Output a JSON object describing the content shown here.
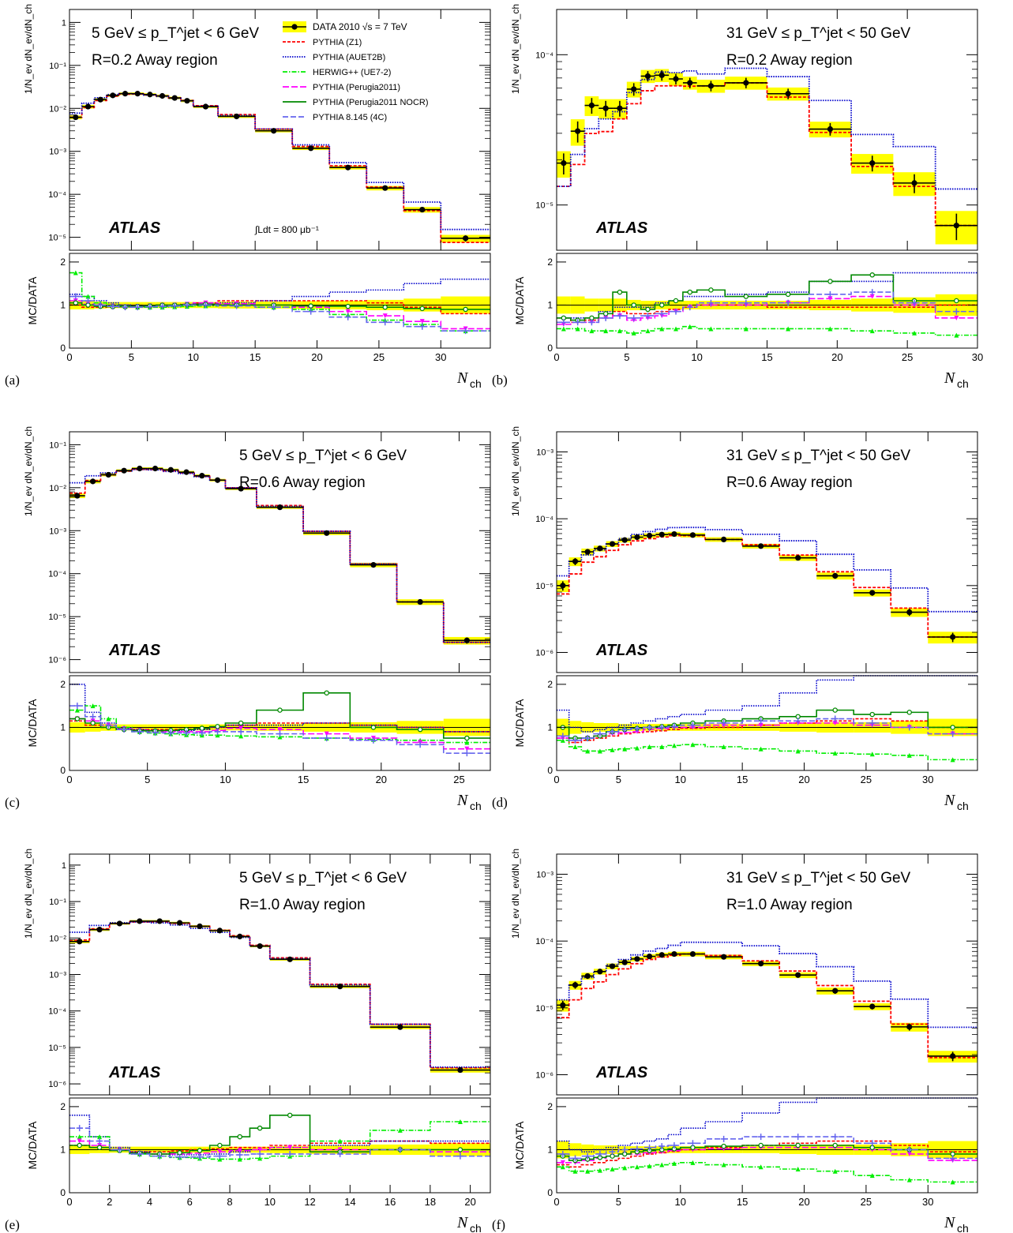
{
  "colors": {
    "data": "#000000",
    "band": "#ffff00",
    "z1": "#ff0000",
    "auet2b": "#0000cc",
    "herwig": "#00ee00",
    "perugia": "#ff00ff",
    "nocr": "#008800",
    "p8": "#6666ee"
  },
  "common": {
    "atlas": "ATLAS",
    "ratio_ylabel": "MC/DATA",
    "xlabel_main": "N",
    "xlabel_sub": "ch",
    "ylabel_frac": "1/N_ev dN_ev/dN_ch"
  },
  "legend": {
    "data_label": "DATA 2010",
    "energy_label": "√s = 7 TeV",
    "entries": [
      "PYTHIA (Z1)",
      "PYTHIA (AUET2B)",
      "HERWIG++ (UE7-2)",
      "PYTHIA (Perugia2011)",
      "PYTHIA (Perugia2011 NOCR)",
      "PYTHIA 8.145 (4C)"
    ],
    "lumi": "∫Ldt = 800 μb⁻¹"
  },
  "chart_data": [
    {
      "id": "a",
      "panel_label": "(a)",
      "type": "line",
      "pt_range": "5 GeV ≤ p_T^jet < 6 GeV",
      "region": "R=0.2   Away region",
      "xlim": [
        0,
        34
      ],
      "ylog": true,
      "ylim": [
        5e-06,
        2
      ],
      "ratio_ylim": [
        0,
        2.2
      ],
      "xticks": [
        0,
        5,
        10,
        15,
        20,
        25,
        30
      ],
      "yticks": [
        1e-05,
        0.0001,
        0.001,
        0.01,
        0.1,
        1
      ],
      "ytick_labels": [
        "10⁻⁵",
        "10⁻⁴",
        "10⁻³",
        "10⁻²",
        "10⁻¹",
        "1"
      ],
      "bins": [
        0,
        1,
        2,
        3,
        4,
        5,
        6,
        7,
        8,
        9,
        10,
        12,
        15,
        18,
        21,
        24,
        27,
        30,
        34
      ],
      "data": [
        0.0062,
        0.011,
        0.016,
        0.02,
        0.022,
        0.022,
        0.021,
        0.0195,
        0.0175,
        0.015,
        0.011,
        0.0065,
        0.003,
        0.00118,
        0.00042,
        0.00014,
        4.4e-05,
        9.5e-06
      ],
      "ratios": {
        "z1": [
          1.0,
          0.95,
          0.95,
          0.96,
          0.97,
          0.98,
          0.98,
          1.0,
          1.0,
          1.02,
          1.05,
          1.1,
          1.1,
          1.1,
          1.1,
          1.05,
          0.95,
          0.8
        ],
        "auet2b": [
          1.25,
          1.2,
          1.1,
          1.05,
          1.0,
          0.98,
          0.97,
          0.97,
          0.98,
          1.0,
          1.02,
          1.05,
          1.1,
          1.2,
          1.3,
          1.35,
          1.5,
          1.6
        ],
        "herwig": [
          1.75,
          1.2,
          1.05,
          1.0,
          0.97,
          0.95,
          0.95,
          0.95,
          0.96,
          0.97,
          0.98,
          1.0,
          0.95,
          0.9,
          0.78,
          0.65,
          0.55,
          0.4
        ],
        "perugia": [
          1.1,
          1.02,
          0.98,
          0.97,
          0.96,
          0.97,
          0.98,
          1.0,
          1.0,
          1.02,
          1.05,
          1.03,
          1.0,
          0.95,
          0.85,
          0.75,
          0.62,
          0.45
        ],
        "nocr": [
          1.05,
          1.0,
          0.97,
          0.96,
          0.96,
          0.97,
          0.98,
          1.0,
          1.0,
          1.01,
          1.02,
          1.0,
          1.0,
          0.98,
          0.97,
          0.95,
          0.92,
          0.9
        ],
        "p8": [
          1.2,
          1.1,
          1.0,
          0.97,
          0.95,
          0.95,
          0.96,
          0.97,
          0.98,
          1.0,
          1.0,
          0.98,
          0.95,
          0.85,
          0.72,
          0.6,
          0.5,
          0.4
        ]
      },
      "band_half": [
        0.1,
        0.1,
        0.08,
        0.07,
        0.07,
        0.07,
        0.07,
        0.07,
        0.07,
        0.07,
        0.07,
        0.08,
        0.08,
        0.09,
        0.1,
        0.12,
        0.15,
        0.2
      ]
    },
    {
      "id": "b",
      "panel_label": "(b)",
      "type": "line",
      "pt_range": "31 GeV ≤ p_T^jet < 50 GeV",
      "region": "R=0.2   Away region",
      "xlim": [
        0,
        30
      ],
      "ylog": true,
      "ylim": [
        5e-06,
        0.0002
      ],
      "ratio_ylim": [
        0,
        2.2
      ],
      "xticks": [
        0,
        5,
        10,
        15,
        20,
        25,
        30
      ],
      "yticks": [
        1e-05,
        0.0001
      ],
      "ytick_labels": [
        "10⁻⁵",
        "10⁻⁴"
      ],
      "bins": [
        0,
        1,
        2,
        3,
        4,
        5,
        6,
        7,
        8,
        9,
        10,
        12,
        15,
        18,
        21,
        24,
        27,
        30
      ],
      "data": [
        1.9e-05,
        3.1e-05,
        4.6e-05,
        4.4e-05,
        4.4e-05,
        5.9e-05,
        7.2e-05,
        7.3e-05,
        6.9e-05,
        6.5e-05,
        6.2e-05,
        6.5e-05,
        5.5e-05,
        3.2e-05,
        1.9e-05,
        1.4e-05,
        7.3e-06
      ],
      "ratios": {
        "z1": [
          0.7,
          0.6,
          0.65,
          0.7,
          0.85,
          0.8,
          0.8,
          0.85,
          0.9,
          0.95,
          1.0,
          1.0,
          0.95,
          0.95,
          0.95,
          0.95,
          1.0
        ],
        "auet2b": [
          0.7,
          0.7,
          0.7,
          0.85,
          0.95,
          0.95,
          0.95,
          1.05,
          1.1,
          1.2,
          1.2,
          1.25,
          1.3,
          1.55,
          1.55,
          1.75,
          1.75
        ],
        "herwig": [
          0.45,
          0.45,
          0.4,
          0.4,
          0.4,
          0.35,
          0.4,
          0.45,
          0.45,
          0.5,
          0.45,
          0.45,
          0.45,
          0.45,
          0.4,
          0.35,
          0.3
        ],
        "perugia": [
          0.55,
          0.6,
          0.6,
          0.7,
          0.75,
          0.65,
          0.7,
          0.75,
          0.85,
          0.95,
          1.0,
          1.0,
          1.05,
          1.15,
          1.2,
          1.0,
          0.7
        ],
        "nocr": [
          0.7,
          0.65,
          0.7,
          0.8,
          1.3,
          1.0,
          0.9,
          1.0,
          1.1,
          1.3,
          1.35,
          1.2,
          1.25,
          1.55,
          1.7,
          1.1,
          1.1
        ],
        "p8": [
          0.6,
          0.6,
          0.6,
          0.7,
          0.75,
          0.7,
          0.75,
          0.8,
          0.85,
          0.95,
          1.05,
          1.05,
          1.05,
          1.25,
          1.3,
          1.05,
          0.85
        ]
      },
      "band_half": [
        0.2,
        0.2,
        0.15,
        0.15,
        0.15,
        0.12,
        0.1,
        0.1,
        0.1,
        0.1,
        0.1,
        0.1,
        0.1,
        0.12,
        0.15,
        0.18,
        0.25
      ]
    },
    {
      "id": "c",
      "panel_label": "(c)",
      "type": "line",
      "pt_range": "5 GeV ≤ p_T^jet < 6 GeV",
      "region": "R=0.6   Away region",
      "xlim": [
        0,
        27
      ],
      "ylog": true,
      "ylim": [
        5e-07,
        0.2
      ],
      "ratio_ylim": [
        0,
        2.2
      ],
      "xticks": [
        0,
        5,
        10,
        15,
        20,
        25
      ],
      "yticks": [
        1e-06,
        1e-05,
        0.0001,
        0.001,
        0.01,
        0.1
      ],
      "ytick_labels": [
        "10⁻⁶",
        "10⁻⁵",
        "10⁻⁴",
        "10⁻³",
        "10⁻²",
        "10⁻¹"
      ],
      "bins": [
        0,
        1,
        2,
        3,
        4,
        5,
        6,
        7,
        8,
        9,
        10,
        12,
        15,
        18,
        21,
        24,
        27
      ],
      "data": [
        0.0065,
        0.014,
        0.02,
        0.025,
        0.028,
        0.028,
        0.026,
        0.023,
        0.019,
        0.015,
        0.0095,
        0.0035,
        0.00088,
        0.00016,
        2.2e-05,
        2.8e-06
      ],
      "ratios": {
        "z1": [
          1.15,
          1.05,
          1.0,
          0.97,
          0.95,
          0.95,
          0.95,
          0.96,
          0.97,
          1.0,
          1.05,
          1.1,
          1.1,
          1.05,
          1.0,
          0.9
        ],
        "auet2b": [
          2.0,
          1.35,
          1.1,
          0.98,
          0.95,
          0.93,
          0.92,
          0.93,
          0.95,
          1.0,
          1.05,
          1.05,
          1.1,
          1.05,
          1.0,
          0.9
        ],
        "herwig": [
          1.4,
          1.5,
          1.2,
          1.0,
          0.9,
          0.87,
          0.85,
          0.83,
          0.82,
          0.82,
          0.8,
          0.78,
          0.75,
          0.72,
          0.7,
          0.65
        ],
        "perugia": [
          1.2,
          1.15,
          1.05,
          0.97,
          0.93,
          0.9,
          0.9,
          0.9,
          0.9,
          0.93,
          0.98,
          0.95,
          0.85,
          0.75,
          0.65,
          0.5
        ],
        "nocr": [
          1.2,
          1.1,
          1.0,
          0.95,
          0.92,
          0.92,
          0.93,
          0.95,
          0.98,
          1.02,
          1.1,
          1.4,
          1.8,
          1.0,
          0.95,
          0.75
        ],
        "p8": [
          1.5,
          1.25,
          1.05,
          0.95,
          0.9,
          0.88,
          0.87,
          0.87,
          0.87,
          0.9,
          0.9,
          0.85,
          0.75,
          0.7,
          0.6,
          0.4
        ]
      },
      "band_half": [
        0.12,
        0.1,
        0.08,
        0.07,
        0.07,
        0.07,
        0.07,
        0.07,
        0.07,
        0.07,
        0.07,
        0.08,
        0.1,
        0.12,
        0.15,
        0.2
      ]
    },
    {
      "id": "d",
      "panel_label": "(d)",
      "type": "line",
      "pt_range": "31 GeV ≤ p_T^jet < 50 GeV",
      "region": "R=0.6   Away region",
      "xlim": [
        0,
        34
      ],
      "ylog": true,
      "ylim": [
        5e-07,
        0.002
      ],
      "ratio_ylim": [
        0,
        2.2
      ],
      "xticks": [
        0,
        5,
        10,
        15,
        20,
        25,
        30
      ],
      "yticks": [
        1e-06,
        1e-05,
        0.0001,
        0.001
      ],
      "ytick_labels": [
        "10⁻⁶",
        "10⁻⁵",
        "10⁻⁴",
        "10⁻³"
      ],
      "bins": [
        0,
        1,
        2,
        3,
        4,
        5,
        6,
        7,
        8,
        9,
        10,
        12,
        15,
        18,
        21,
        24,
        27,
        30,
        34
      ],
      "data": [
        1e-05,
        2.3e-05,
        3.2e-05,
        3.6e-05,
        4.2e-05,
        4.8e-05,
        5.3e-05,
        5.6e-05,
        5.8e-05,
        5.9e-05,
        5.7e-05,
        4.9e-05,
        3.9e-05,
        2.6e-05,
        1.4e-05,
        7.8e-06,
        4e-06,
        1.7e-06
      ],
      "ratios": {
        "z1": [
          0.75,
          0.65,
          0.7,
          0.75,
          0.8,
          0.85,
          0.88,
          0.9,
          0.92,
          0.95,
          0.98,
          1.0,
          1.05,
          1.1,
          1.15,
          1.2,
          1.15,
          1.0
        ],
        "auet2b": [
          1.4,
          1.0,
          0.9,
          0.95,
          1.0,
          1.05,
          1.1,
          1.15,
          1.2,
          1.25,
          1.3,
          1.4,
          1.5,
          1.8,
          2.1,
          2.2,
          2.3,
          2.4
        ],
        "herwig": [
          0.7,
          0.55,
          0.45,
          0.45,
          0.48,
          0.5,
          0.52,
          0.55,
          0.55,
          0.58,
          0.6,
          0.55,
          0.5,
          0.45,
          0.4,
          0.38,
          0.35,
          0.25
        ],
        "perugia": [
          0.75,
          0.7,
          0.75,
          0.8,
          0.85,
          0.88,
          0.9,
          0.95,
          0.97,
          1.0,
          1.0,
          1.05,
          1.05,
          1.1,
          1.1,
          1.05,
          1.0,
          0.85
        ],
        "nocr": [
          1.0,
          0.75,
          0.75,
          0.8,
          0.9,
          0.95,
          0.98,
          1.0,
          1.02,
          1.05,
          1.1,
          1.15,
          1.2,
          1.25,
          1.4,
          1.3,
          1.35,
          1.0
        ],
        "p8": [
          0.8,
          0.7,
          0.75,
          0.85,
          0.9,
          0.95,
          0.97,
          1.0,
          1.0,
          1.02,
          1.05,
          1.1,
          1.15,
          1.15,
          1.2,
          1.1,
          1.0,
          0.85
        ]
      },
      "band_half": [
        0.2,
        0.15,
        0.12,
        0.1,
        0.1,
        0.08,
        0.08,
        0.08,
        0.08,
        0.08,
        0.08,
        0.08,
        0.08,
        0.1,
        0.12,
        0.12,
        0.15,
        0.2
      ]
    },
    {
      "id": "e",
      "panel_label": "(e)",
      "type": "line",
      "pt_range": "5 GeV ≤ p_T^jet < 6 GeV",
      "region": "R=1.0   Away region",
      "xlim": [
        0,
        21
      ],
      "ylog": true,
      "ylim": [
        5e-07,
        2
      ],
      "ratio_ylim": [
        0,
        2.2
      ],
      "xticks": [
        0,
        2,
        4,
        6,
        8,
        10,
        12,
        14,
        16,
        18,
        20
      ],
      "yticks": [
        1e-06,
        1e-05,
        0.0001,
        0.001,
        0.01,
        0.1,
        1
      ],
      "ytick_labels": [
        "10⁻⁶",
        "10⁻⁵",
        "10⁻⁴",
        "10⁻³",
        "10⁻²",
        "10⁻¹",
        "1"
      ],
      "bins": [
        0,
        1,
        2,
        3,
        4,
        5,
        6,
        7,
        8,
        9,
        10,
        12,
        15,
        18,
        21
      ],
      "data": [
        0.008,
        0.017,
        0.025,
        0.029,
        0.029,
        0.026,
        0.021,
        0.016,
        0.011,
        0.006,
        0.0026,
        0.00047,
        3.6e-05,
        2.4e-06
      ],
      "ratios": {
        "z1": [
          1.1,
          1.05,
          1.0,
          0.95,
          0.95,
          0.97,
          1.0,
          1.02,
          1.05,
          1.05,
          1.1,
          1.15,
          1.2,
          1.15
        ],
        "auet2b": [
          1.8,
          1.3,
          1.05,
          0.95,
          0.9,
          0.88,
          0.88,
          0.9,
          0.95,
          1.0,
          1.05,
          1.1,
          1.2,
          1.2
        ],
        "herwig": [
          1.3,
          1.3,
          1.0,
          0.9,
          0.85,
          0.82,
          0.8,
          0.78,
          0.78,
          0.8,
          0.85,
          1.2,
          1.45,
          1.65
        ],
        "perugia": [
          1.2,
          1.1,
          1.0,
          0.92,
          0.9,
          0.9,
          0.92,
          0.95,
          0.98,
          1.0,
          1.05,
          1.0,
          1.0,
          0.95
        ],
        "nocr": [
          1.1,
          1.05,
          0.98,
          0.92,
          0.9,
          0.93,
          0.98,
          1.1,
          1.3,
          1.5,
          1.8,
          0.95,
          1.0,
          1.0
        ],
        "p8": [
          1.5,
          1.2,
          1.0,
          0.9,
          0.85,
          0.83,
          0.83,
          0.85,
          0.88,
          0.9,
          0.9,
          0.9,
          1.0,
          0.85
        ]
      },
      "band_half": [
        0.1,
        0.08,
        0.07,
        0.07,
        0.07,
        0.07,
        0.07,
        0.07,
        0.07,
        0.07,
        0.08,
        0.1,
        0.12,
        0.15
      ]
    },
    {
      "id": "f",
      "panel_label": "(f)",
      "type": "line",
      "pt_range": "31 GeV ≤ p_T^jet < 50 GeV",
      "region": "R=1.0   Away region",
      "xlim": [
        0,
        34
      ],
      "ylog": true,
      "ylim": [
        5e-07,
        0.002
      ],
      "ratio_ylim": [
        0,
        2.2
      ],
      "xticks": [
        0,
        5,
        10,
        15,
        20,
        25,
        30
      ],
      "yticks": [
        1e-06,
        1e-05,
        0.0001,
        0.001
      ],
      "ytick_labels": [
        "10⁻⁶",
        "10⁻⁵",
        "10⁻⁴",
        "10⁻³"
      ],
      "bins": [
        0,
        1,
        2,
        3,
        4,
        5,
        6,
        7,
        8,
        9,
        10,
        12,
        15,
        18,
        21,
        24,
        27,
        30,
        34
      ],
      "data": [
        1.1e-05,
        2.2e-05,
        3e-05,
        3.5e-05,
        4.2e-05,
        4.8e-05,
        5.4e-05,
        5.9e-05,
        6.2e-05,
        6.4e-05,
        6.4e-05,
        5.8e-05,
        4.6e-05,
        3.1e-05,
        1.8e-05,
        1.05e-05,
        5.2e-06,
        1.9e-06
      ],
      "ratios": {
        "z1": [
          0.65,
          0.6,
          0.65,
          0.7,
          0.75,
          0.8,
          0.85,
          0.9,
          0.93,
          0.96,
          1.0,
          1.05,
          1.1,
          1.15,
          1.2,
          1.2,
          1.1,
          0.95
        ],
        "auet2b": [
          1.2,
          1.0,
          0.95,
          1.0,
          1.05,
          1.1,
          1.15,
          1.2,
          1.25,
          1.35,
          1.5,
          1.65,
          1.85,
          2.1,
          2.3,
          2.4,
          2.6,
          2.7
        ],
        "herwig": [
          0.6,
          0.5,
          0.5,
          0.52,
          0.55,
          0.58,
          0.6,
          0.62,
          0.65,
          0.68,
          0.7,
          0.65,
          0.6,
          0.55,
          0.5,
          0.4,
          0.3,
          0.25
        ],
        "perugia": [
          0.7,
          0.7,
          0.75,
          0.8,
          0.85,
          0.9,
          0.9,
          0.93,
          0.95,
          0.98,
          1.0,
          1.02,
          1.05,
          1.05,
          1.05,
          1.0,
          0.9,
          0.75
        ],
        "nocr": [
          0.85,
          0.75,
          0.78,
          0.82,
          0.85,
          0.9,
          0.95,
          0.98,
          1.0,
          1.02,
          1.05,
          1.08,
          1.1,
          1.1,
          1.1,
          1.05,
          1.0,
          0.9
        ],
        "p8": [
          0.9,
          0.8,
          0.85,
          0.9,
          0.95,
          1.0,
          1.02,
          1.05,
          1.08,
          1.1,
          1.15,
          1.25,
          1.3,
          1.3,
          1.3,
          1.15,
          1.0,
          0.8
        ]
      },
      "band_half": [
        0.2,
        0.15,
        0.12,
        0.1,
        0.1,
        0.08,
        0.08,
        0.08,
        0.08,
        0.08,
        0.08,
        0.08,
        0.08,
        0.1,
        0.12,
        0.12,
        0.15,
        0.2
      ]
    }
  ]
}
